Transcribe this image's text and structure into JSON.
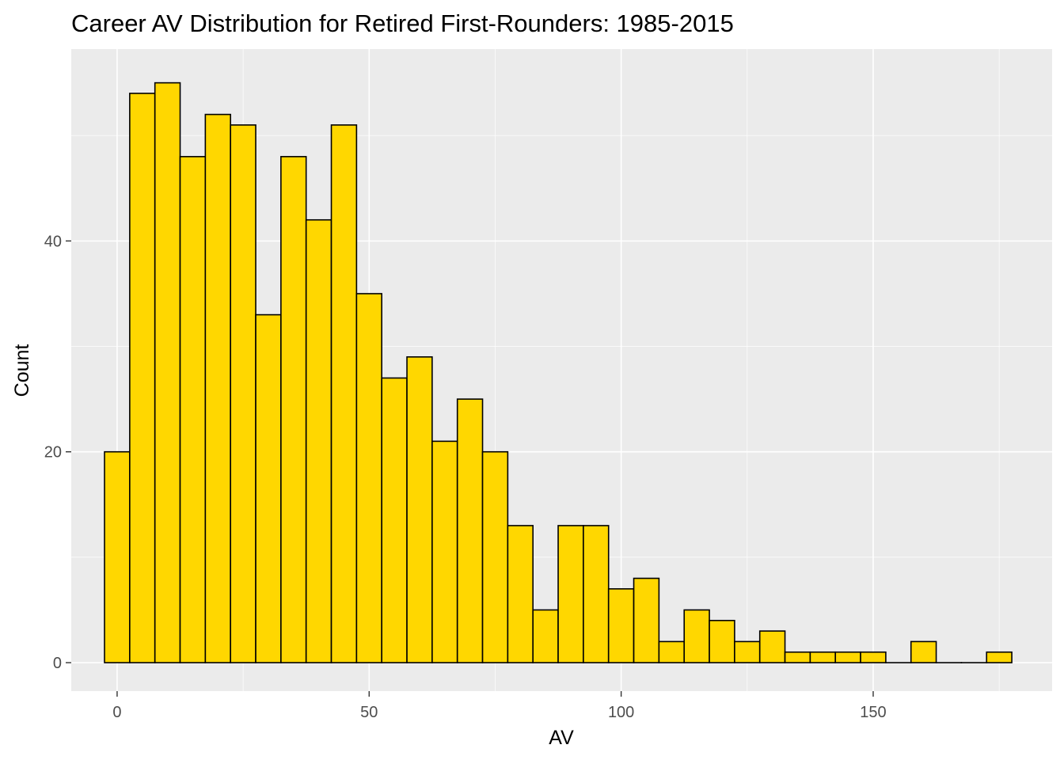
{
  "chart_data": {
    "type": "bar",
    "title": "Career AV Distribution for Retired First-Rounders: 1985-2015",
    "xlabel": "AV",
    "ylabel": "Count",
    "xlim": [
      -9.1,
      185.5
    ],
    "ylim": [
      -2.7,
      58.2
    ],
    "x_ticks": [
      0,
      50,
      100,
      150
    ],
    "x_tick_labels": [
      "0",
      "50",
      "100",
      "150"
    ],
    "y_ticks": [
      0,
      20,
      40
    ],
    "y_tick_labels": [
      "0",
      "20",
      "40"
    ],
    "grid": true,
    "bin_width": 5,
    "bin_centers": [
      0,
      5,
      10,
      15,
      20,
      25,
      30,
      35,
      40,
      45,
      50,
      55,
      60,
      65,
      70,
      75,
      80,
      85,
      90,
      95,
      100,
      105,
      110,
      115,
      120,
      125,
      130,
      135,
      140,
      145,
      150,
      155,
      160,
      165,
      170,
      175
    ],
    "values": [
      20,
      54,
      55,
      48,
      52,
      51,
      33,
      48,
      42,
      51,
      35,
      27,
      29,
      21,
      25,
      20,
      13,
      5,
      13,
      13,
      7,
      8,
      2,
      5,
      4,
      2,
      3,
      1,
      1,
      1,
      1,
      0,
      2,
      0,
      0,
      1
    ],
    "colors": {
      "bar_fill": "#FFD700",
      "bar_stroke": "#000000",
      "panel_bg": "#EBEBEB",
      "grid_major": "#FFFFFF"
    }
  }
}
